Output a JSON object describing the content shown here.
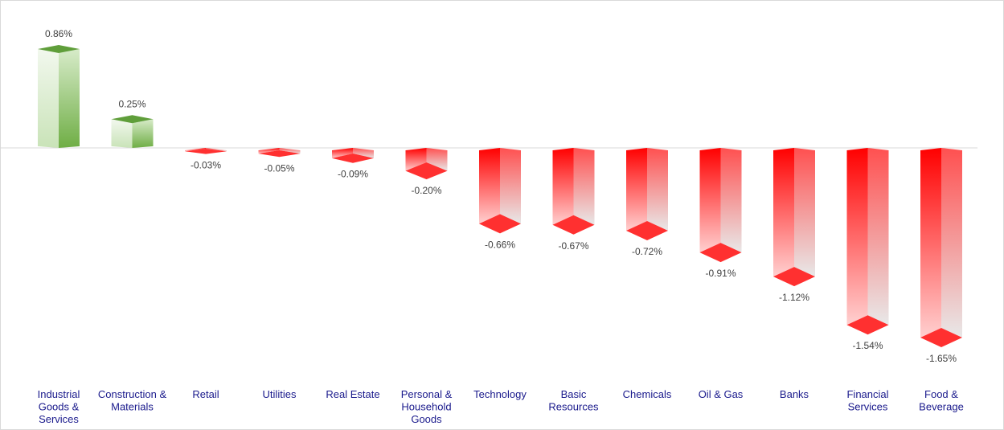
{
  "chart_data": {
    "type": "bar",
    "title": "",
    "xlabel": "",
    "ylabel": "",
    "categories": [
      "Industrial Goods & Services",
      "Construction & Materials",
      "Retail",
      "Utilities",
      "Real Estate",
      "Personal & Household Goods",
      "Technology",
      "Basic Resources",
      "Chemicals",
      "Oil & Gas",
      "Banks",
      "Financial Services",
      "Food & Beverage"
    ],
    "category_lines": [
      [
        "Industrial",
        "Goods &",
        "Services"
      ],
      [
        "Construction &",
        "Materials"
      ],
      [
        "Retail"
      ],
      [
        "Utilities"
      ],
      [
        "Real Estate"
      ],
      [
        "Personal &",
        "Household",
        "Goods"
      ],
      [
        "Technology"
      ],
      [
        "Basic",
        "Resources"
      ],
      [
        "Chemicals"
      ],
      [
        "Oil & Gas"
      ],
      [
        "Banks"
      ],
      [
        "Financial",
        "Services"
      ],
      [
        "Food &",
        "Beverage"
      ]
    ],
    "values": [
      0.86,
      0.25,
      -0.03,
      -0.05,
      -0.09,
      -0.2,
      -0.66,
      -0.67,
      -0.72,
      -0.91,
      -1.12,
      -1.54,
      -1.65
    ],
    "labels": [
      "0.86%",
      "0.25%",
      "-0.03%",
      "-0.05%",
      "-0.09%",
      "-0.20%",
      "-0.66%",
      "-0.67%",
      "-0.72%",
      "-0.91%",
      "-1.12%",
      "-1.54%",
      "-1.65%"
    ],
    "ylim": [
      -1.8,
      1.0
    ],
    "grid": false,
    "legend": "none",
    "colors": {
      "positive": "#70ad47",
      "negative": "#ff0000",
      "axis": "#d9d9d9"
    }
  }
}
